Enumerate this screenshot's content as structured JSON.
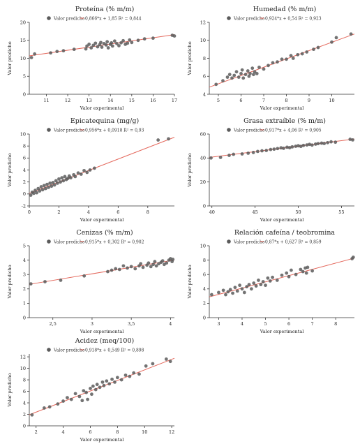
{
  "chart_data": [
    {
      "type": "scatter",
      "title": "Proteína (% m/m)",
      "xlabel": "Valor experimental",
      "ylabel": "Valor predicho",
      "legend": {
        "label": "Valor predicho",
        "equation": "0,866*x + 1,85 R² = 0,844",
        "placement": "top-center"
      },
      "xlim": [
        10.2,
        17.0
      ],
      "ylim": [
        0,
        20
      ],
      "xticks": [
        11,
        12,
        13,
        14,
        15,
        16,
        17
      ],
      "yticks": [
        0,
        5,
        10,
        15,
        20
      ],
      "fit": {
        "slope": 0.866,
        "intercept": 1.85
      },
      "colors": {
        "points": "#5b5b5b",
        "line": "#e4685c"
      },
      "points": [
        [
          10.3,
          10.2
        ],
        [
          10.45,
          11.2
        ],
        [
          11.2,
          11.5
        ],
        [
          11.5,
          11.9
        ],
        [
          11.8,
          12.1
        ],
        [
          12.3,
          12.5
        ],
        [
          12.85,
          12.6
        ],
        [
          12.9,
          13.4
        ],
        [
          13.0,
          13.9
        ],
        [
          13.1,
          12.9
        ],
        [
          13.2,
          13.6
        ],
        [
          13.3,
          14.2
        ],
        [
          13.4,
          13.2
        ],
        [
          13.5,
          13.8
        ],
        [
          13.55,
          14.4
        ],
        [
          13.6,
          13.1
        ],
        [
          13.7,
          14.1
        ],
        [
          13.8,
          13.7
        ],
        [
          13.85,
          14.6
        ],
        [
          13.9,
          12.9
        ],
        [
          14.0,
          13.9
        ],
        [
          14.05,
          14.3
        ],
        [
          14.1,
          13.4
        ],
        [
          14.2,
          14.8
        ],
        [
          14.3,
          14.1
        ],
        [
          14.4,
          13.5
        ],
        [
          14.5,
          14.3
        ],
        [
          14.6,
          14.9
        ],
        [
          14.7,
          13.9
        ],
        [
          14.8,
          14.2
        ],
        [
          14.9,
          15.1
        ],
        [
          15.0,
          14.4
        ],
        [
          15.3,
          15.0
        ],
        [
          15.6,
          15.4
        ],
        [
          16.0,
          15.6
        ],
        [
          16.9,
          16.4
        ],
        [
          17.0,
          16.2
        ]
      ]
    },
    {
      "type": "scatter",
      "title": "Humedad (% m/m)",
      "xlabel": "Valor experimental",
      "ylabel": "Valor predicho",
      "legend": {
        "label": "Valor predicho",
        "equation": "0,924*x + 0,54 R² = 0,923",
        "placement": "top-center"
      },
      "xlim": [
        4.6,
        11.0
      ],
      "ylim": [
        4,
        12
      ],
      "xticks": [
        5,
        6,
        7,
        8,
        9,
        10
      ],
      "yticks": [
        4,
        6,
        8,
        10,
        12
      ],
      "fit": {
        "slope": 0.924,
        "intercept": 0.54
      },
      "colors": {
        "points": "#5b5b5b",
        "line": "#e4685c"
      },
      "points": [
        [
          4.9,
          5.1
        ],
        [
          5.2,
          5.5
        ],
        [
          5.4,
          5.9
        ],
        [
          5.5,
          6.2
        ],
        [
          5.6,
          5.8
        ],
        [
          5.7,
          6.1
        ],
        [
          5.8,
          6.5
        ],
        [
          5.9,
          5.9
        ],
        [
          6.0,
          6.3
        ],
        [
          6.05,
          6.7
        ],
        [
          6.1,
          5.8
        ],
        [
          6.2,
          6.2
        ],
        [
          6.3,
          6.6
        ],
        [
          6.35,
          6.0
        ],
        [
          6.4,
          6.3
        ],
        [
          6.5,
          6.9
        ],
        [
          6.55,
          6.2
        ],
        [
          6.6,
          6.5
        ],
        [
          6.7,
          6.3
        ],
        [
          6.8,
          7.0
        ],
        [
          7.0,
          6.8
        ],
        [
          7.2,
          7.2
        ],
        [
          7.4,
          7.5
        ],
        [
          7.6,
          7.6
        ],
        [
          7.8,
          7.9
        ],
        [
          8.0,
          7.9
        ],
        [
          8.2,
          8.3
        ],
        [
          8.3,
          8.0
        ],
        [
          8.5,
          8.4
        ],
        [
          8.7,
          8.5
        ],
        [
          8.9,
          8.7
        ],
        [
          9.2,
          9.0
        ],
        [
          9.4,
          9.2
        ],
        [
          10.0,
          9.8
        ],
        [
          10.2,
          10.3
        ],
        [
          10.85,
          10.7
        ]
      ]
    },
    {
      "type": "scatter",
      "title": "Epicatequina (mg/g)",
      "xlabel": "Valor experimental",
      "ylabel": "Valor predicho",
      "legend": {
        "label": "Valor predicho",
        "equation": "0,956*x + 0,0918 R² = 0,93",
        "placement": "top-center"
      },
      "xlim": [
        0,
        9.8
      ],
      "ylim": [
        -2,
        10
      ],
      "xticks": [
        0,
        2,
        4,
        6,
        8
      ],
      "yticks": [
        -2,
        0,
        2,
        4,
        6,
        8,
        10
      ],
      "fit": {
        "slope": 0.956,
        "intercept": 0.0918
      },
      "colors": {
        "points": "#5b5b5b",
        "line": "#e4685c"
      },
      "points": [
        [
          0.1,
          -0.2
        ],
        [
          0.2,
          0.3
        ],
        [
          0.3,
          0.1
        ],
        [
          0.4,
          0.6
        ],
        [
          0.5,
          0.2
        ],
        [
          0.6,
          0.9
        ],
        [
          0.7,
          0.5
        ],
        [
          0.8,
          1.2
        ],
        [
          0.9,
          0.7
        ],
        [
          1.0,
          1.4
        ],
        [
          1.1,
          0.9
        ],
        [
          1.2,
          1.6
        ],
        [
          1.3,
          1.1
        ],
        [
          1.4,
          1.8
        ],
        [
          1.5,
          1.3
        ],
        [
          1.6,
          1.9
        ],
        [
          1.7,
          1.5
        ],
        [
          1.8,
          2.2
        ],
        [
          1.9,
          1.8
        ],
        [
          2.0,
          2.5
        ],
        [
          2.1,
          2.0
        ],
        [
          2.2,
          2.7
        ],
        [
          2.3,
          2.2
        ],
        [
          2.4,
          2.9
        ],
        [
          2.5,
          2.4
        ],
        [
          2.6,
          2.6
        ],
        [
          2.7,
          3.0
        ],
        [
          2.8,
          2.7
        ],
        [
          3.0,
          3.2
        ],
        [
          3.1,
          2.9
        ],
        [
          3.3,
          3.5
        ],
        [
          3.5,
          3.3
        ],
        [
          3.7,
          3.9
        ],
        [
          3.9,
          3.6
        ],
        [
          4.1,
          4.0
        ],
        [
          4.4,
          4.3
        ],
        [
          8.7,
          9.0
        ],
        [
          9.4,
          9.2
        ]
      ]
    },
    {
      "type": "scatter",
      "title": "Grasa extraíble (% m/m)",
      "xlabel": "Valor experimental",
      "ylabel": "Valor predicho",
      "legend": {
        "label": "Valor predicho",
        "equation": "0,917*x + 4,06 R² = 0,905",
        "placement": "top-center"
      },
      "xlim": [
        39.7,
        56.5
      ],
      "ylim": [
        0,
        60
      ],
      "xticks": [
        40,
        45,
        50,
        55
      ],
      "yticks": [
        0,
        20,
        40,
        60
      ],
      "fit": {
        "slope": 0.917,
        "intercept": 4.06
      },
      "colors": {
        "points": "#5b5b5b",
        "line": "#e4685c"
      },
      "points": [
        [
          39.9,
          40.0
        ],
        [
          41.0,
          40.5
        ],
        [
          42.0,
          42.2
        ],
        [
          42.5,
          43.1
        ],
        [
          43.5,
          43.4
        ],
        [
          44.2,
          44.0
        ],
        [
          44.8,
          44.6
        ],
        [
          45.3,
          45.5
        ],
        [
          45.8,
          46.0
        ],
        [
          46.3,
          46.3
        ],
        [
          46.8,
          47.1
        ],
        [
          47.2,
          47.4
        ],
        [
          47.6,
          47.9
        ],
        [
          48.0,
          48.5
        ],
        [
          48.3,
          48.1
        ],
        [
          48.7,
          49.0
        ],
        [
          49.0,
          48.6
        ],
        [
          49.3,
          49.3
        ],
        [
          49.7,
          49.8
        ],
        [
          50.0,
          50.2
        ],
        [
          50.3,
          49.7
        ],
        [
          50.6,
          50.5
        ],
        [
          51.0,
          50.9
        ],
        [
          51.3,
          51.4
        ],
        [
          51.6,
          50.8
        ],
        [
          52.0,
          51.6
        ],
        [
          52.3,
          52.0
        ],
        [
          52.7,
          52.4
        ],
        [
          53.0,
          52.1
        ],
        [
          53.4,
          52.8
        ],
        [
          53.8,
          53.5
        ],
        [
          54.3,
          53.2
        ],
        [
          56.0,
          55.6
        ],
        [
          56.3,
          55.1
        ]
      ]
    },
    {
      "type": "scatter",
      "title": "Cenizas (% m/m)",
      "xlabel": "Valor experimental",
      "ylabel": "Valor predicho",
      "legend": {
        "label": "Valor predicho",
        "equation": "0,915*x + 0,302 R² = 0,902",
        "placement": "top-center"
      },
      "xlim": [
        2.2,
        4.05
      ],
      "ylim": [
        0,
        5
      ],
      "xticks": [
        2.5,
        3,
        3.5,
        4
      ],
      "yticks": [
        0,
        1,
        2,
        3,
        4,
        5
      ],
      "fit": {
        "slope": 0.915,
        "intercept": 0.302
      },
      "colors": {
        "points": "#5b5b5b",
        "line": "#e4685c"
      },
      "points": [
        [
          2.22,
          2.35
        ],
        [
          2.4,
          2.5
        ],
        [
          2.6,
          2.6
        ],
        [
          2.9,
          2.9
        ],
        [
          3.2,
          3.2
        ],
        [
          3.25,
          3.3
        ],
        [
          3.3,
          3.4
        ],
        [
          3.35,
          3.35
        ],
        [
          3.4,
          3.6
        ],
        [
          3.45,
          3.45
        ],
        [
          3.5,
          3.55
        ],
        [
          3.55,
          3.4
        ],
        [
          3.6,
          3.6
        ],
        [
          3.62,
          3.75
        ],
        [
          3.65,
          3.5
        ],
        [
          3.7,
          3.65
        ],
        [
          3.72,
          3.8
        ],
        [
          3.75,
          3.55
        ],
        [
          3.78,
          3.7
        ],
        [
          3.8,
          3.9
        ],
        [
          3.82,
          3.6
        ],
        [
          3.85,
          3.75
        ],
        [
          3.88,
          3.85
        ],
        [
          3.9,
          3.95
        ],
        [
          3.92,
          3.7
        ],
        [
          3.95,
          3.8
        ],
        [
          3.98,
          4.0
        ],
        [
          4.0,
          4.1
        ],
        [
          4.02,
          3.9
        ],
        [
          4.03,
          4.05
        ]
      ]
    },
    {
      "type": "scatter",
      "title": "Relación cafeína / teobromina",
      "xlabel": "Valor experimental",
      "ylabel": "Valor predicho",
      "legend": {
        "label": "Valor predicho",
        "equation": "0,87*x + 0,627 R² = 0,859",
        "placement": "top-center"
      },
      "xlim": [
        2.6,
        8.8
      ],
      "ylim": [
        0,
        10
      ],
      "xticks": [
        3,
        4,
        5,
        6,
        7,
        8
      ],
      "yticks": [
        0,
        2,
        4,
        6,
        8,
        10
      ],
      "fit": {
        "slope": 0.87,
        "intercept": 0.627
      },
      "colors": {
        "points": "#5b5b5b",
        "line": "#e4685c"
      },
      "points": [
        [
          2.7,
          3.2
        ],
        [
          3.0,
          3.5
        ],
        [
          3.2,
          3.8
        ],
        [
          3.3,
          3.2
        ],
        [
          3.4,
          3.6
        ],
        [
          3.5,
          3.9
        ],
        [
          3.6,
          3.4
        ],
        [
          3.7,
          4.2
        ],
        [
          3.8,
          3.7
        ],
        [
          3.9,
          4.5
        ],
        [
          4.0,
          4.0
        ],
        [
          4.1,
          3.5
        ],
        [
          4.2,
          4.3
        ],
        [
          4.3,
          4.6
        ],
        [
          4.4,
          4.0
        ],
        [
          4.5,
          4.8
        ],
        [
          4.6,
          4.4
        ],
        [
          4.7,
          5.2
        ],
        [
          4.8,
          4.6
        ],
        [
          4.9,
          5.0
        ],
        [
          5.0,
          4.5
        ],
        [
          5.1,
          5.5
        ],
        [
          5.2,
          5.1
        ],
        [
          5.3,
          5.6
        ],
        [
          5.5,
          5.2
        ],
        [
          5.7,
          5.9
        ],
        [
          5.9,
          6.2
        ],
        [
          6.0,
          5.7
        ],
        [
          6.1,
          6.6
        ],
        [
          6.3,
          6.0
        ],
        [
          6.5,
          6.7
        ],
        [
          6.6,
          6.4
        ],
        [
          6.7,
          6.9
        ],
        [
          6.75,
          6.2
        ],
        [
          6.8,
          7.0
        ],
        [
          7.0,
          6.5
        ],
        [
          8.7,
          8.2
        ],
        [
          8.75,
          8.4
        ]
      ]
    },
    {
      "type": "scatter",
      "title": "Acidez (meq/100)",
      "xlabel": "Valor experimental",
      "ylabel": "Valor predicho",
      "legend": {
        "label": "Valor predicho",
        "equation": "0,918*x + 0,549 R² = 0,898",
        "placement": "top-center"
      },
      "xlim": [
        1.5,
        12.2
      ],
      "ylim": [
        0,
        12.5
      ],
      "xticks": [
        2,
        4,
        6,
        8,
        10,
        12
      ],
      "yticks": [
        0,
        2,
        4,
        6,
        8,
        10,
        12
      ],
      "fit": {
        "slope": 0.918,
        "intercept": 0.549
      },
      "colors": {
        "points": "#5b5b5b",
        "line": "#e4685c"
      },
      "points": [
        [
          1.7,
          1.9
        ],
        [
          2.6,
          3.1
        ],
        [
          3.0,
          3.3
        ],
        [
          3.6,
          3.8
        ],
        [
          4.0,
          4.3
        ],
        [
          4.3,
          4.9
        ],
        [
          4.6,
          4.6
        ],
        [
          4.9,
          5.6
        ],
        [
          5.2,
          5.1
        ],
        [
          5.4,
          4.4
        ],
        [
          5.5,
          6.1
        ],
        [
          5.7,
          5.8
        ],
        [
          5.8,
          4.6
        ],
        [
          6.0,
          6.5
        ],
        [
          6.1,
          5.5
        ],
        [
          6.2,
          6.9
        ],
        [
          6.4,
          6.3
        ],
        [
          6.5,
          7.2
        ],
        [
          6.7,
          6.7
        ],
        [
          6.9,
          7.6
        ],
        [
          7.0,
          7.0
        ],
        [
          7.2,
          7.8
        ],
        [
          7.4,
          7.3
        ],
        [
          7.6,
          8.1
        ],
        [
          7.8,
          7.6
        ],
        [
          8.0,
          8.4
        ],
        [
          8.3,
          8.0
        ],
        [
          8.6,
          8.8
        ],
        [
          8.9,
          8.6
        ],
        [
          9.2,
          9.2
        ],
        [
          9.6,
          9.0
        ],
        [
          10.1,
          10.4
        ],
        [
          10.6,
          10.8
        ],
        [
          11.6,
          11.6
        ],
        [
          11.9,
          11.2
        ]
      ]
    }
  ]
}
